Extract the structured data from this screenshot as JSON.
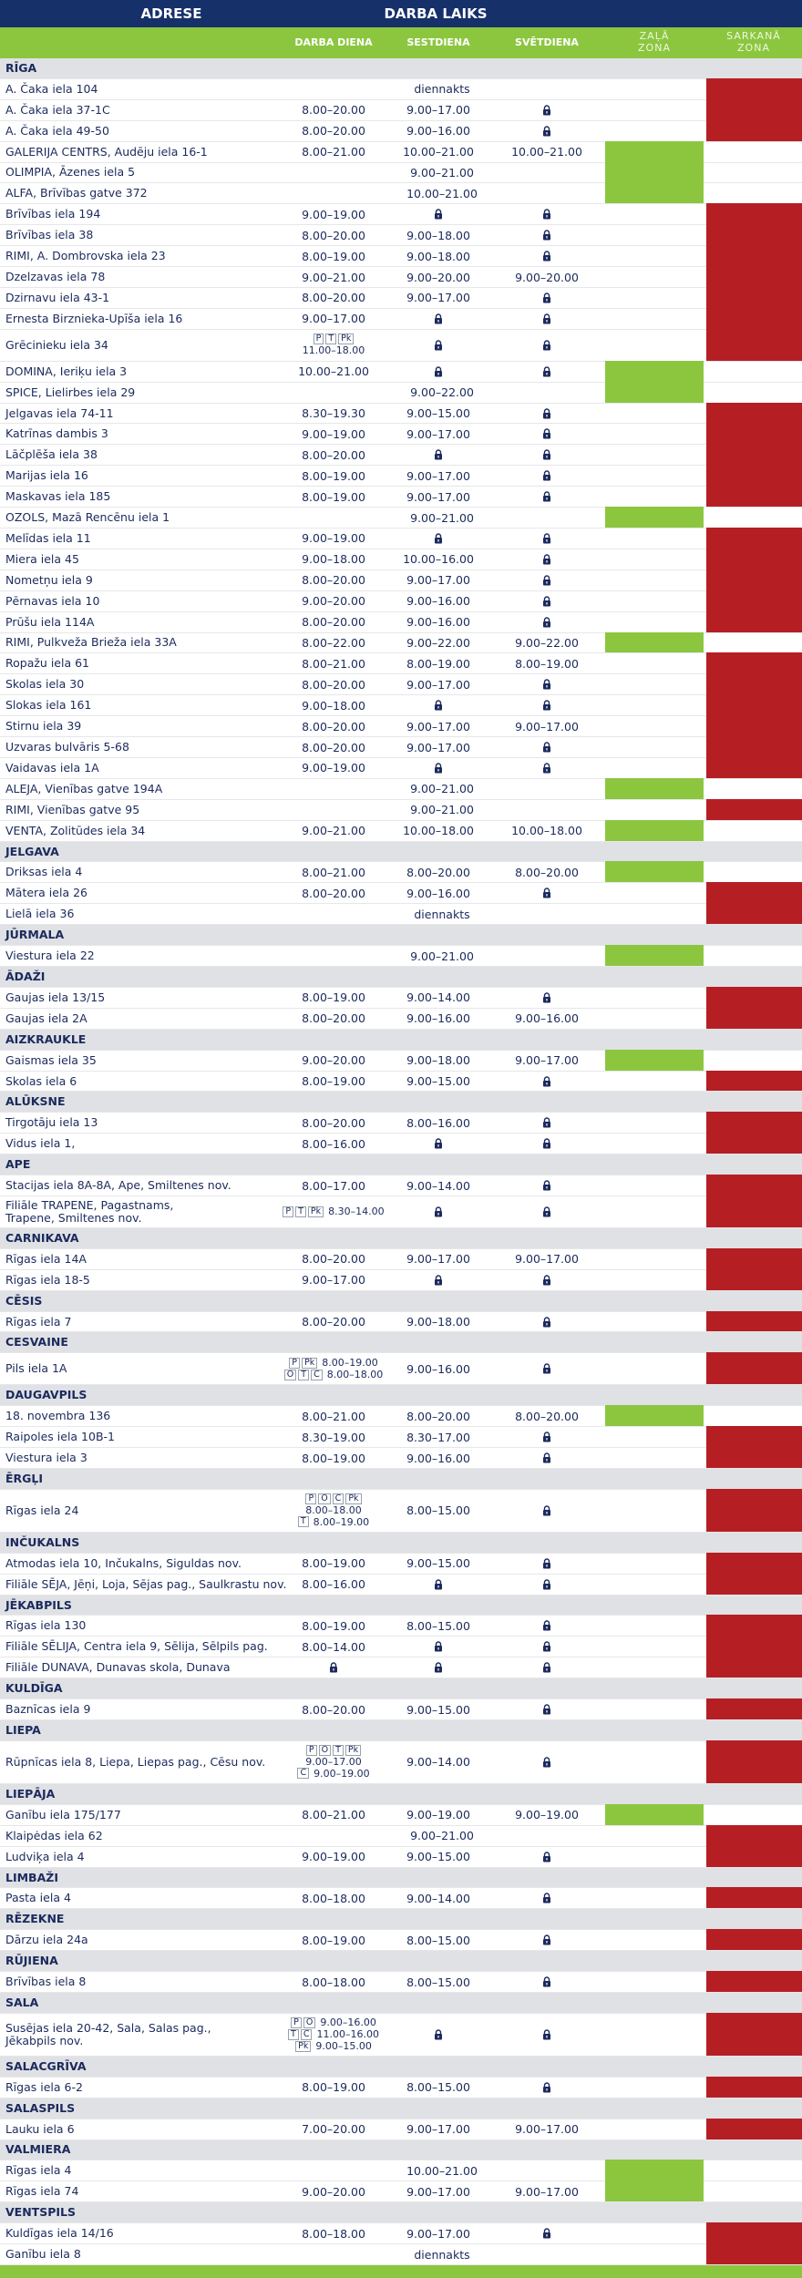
{
  "header": {
    "address": "ADRESE",
    "hours": "DARBA LAIKS",
    "weekday": "DARBA DIENA",
    "saturday": "SESTDIENA",
    "sunday": "SVĒTDIENA",
    "green_zone": "ZAĻĀ ZONA",
    "red_zone": "SARKANĀ ZONA"
  },
  "zone_colors": {
    "green": "#8cc63f",
    "red": "#b51f24"
  },
  "sections": [
    {
      "city": "RĪGA",
      "rows": [
        {
          "address": "A. Čaka iela 104",
          "all_days": "diennakts",
          "zone": "red"
        },
        {
          "address": "A. Čaka iela 37-1C",
          "hours": [
            "8.00–20.00",
            "9.00–17.00",
            false
          ],
          "zone": "red"
        },
        {
          "address": "A. Čaka iela 49-50",
          "hours": [
            "8.00–20.00",
            "9.00–16.00",
            false
          ],
          "zone": "red"
        },
        {
          "address": "GALERIJA CENTRS, Audēju iela 16-1",
          "hours": [
            "8.00–21.00",
            "10.00–21.00",
            "10.00–21.00"
          ],
          "zone": "green"
        },
        {
          "address": "OLIMPIA, Āzenes iela 5",
          "all_days": "9.00–21.00",
          "zone": "green"
        },
        {
          "address": "ALFA, Brīvības gatve 372",
          "all_days": "10.00–21.00",
          "zone": "green"
        },
        {
          "address": "Brīvības iela 194",
          "hours": [
            "9.00–19.00",
            false,
            false
          ],
          "zone": "red"
        },
        {
          "address": "Brīvības iela 38",
          "hours": [
            "8.00–20.00",
            "9.00–18.00",
            false
          ],
          "zone": "red"
        },
        {
          "address": "RIMI, A. Dombrovska iela 23",
          "hours": [
            "8.00–19.00",
            "9.00–18.00",
            false
          ],
          "zone": "red"
        },
        {
          "address": "Dzelzavas iela 78",
          "hours": [
            "9.00–21.00",
            "9.00–20.00",
            "9.00–20.00"
          ],
          "zone": "red"
        },
        {
          "address": "Dzirnavu iela 43-1",
          "hours": [
            "8.00–20.00",
            "9.00–17.00",
            false
          ],
          "zone": "red"
        },
        {
          "address": "Ernesta Birznieka-Upīša iela 16",
          "hours": [
            "9.00–17.00",
            false,
            false
          ],
          "zone": "red"
        },
        {
          "address": "Grēcinieku iela 34",
          "hours": [
            [
              {
                "days": [
                  "P",
                  "T",
                  "Pk"
                ]
              },
              {
                "hours": "11.00–18.00"
              }
            ],
            false,
            false
          ],
          "zone": "red"
        },
        {
          "address": "DOMINA, Ieriķu iela 3",
          "hours": [
            "10.00–21.00",
            false,
            false
          ],
          "zone": "green"
        },
        {
          "address": "SPICE, Lielirbes iela 29",
          "all_days": "9.00–22.00",
          "zone": "green"
        },
        {
          "address": "Jelgavas iela 74-11",
          "hours": [
            "8.30–19.30",
            "9.00–15.00",
            false
          ],
          "zone": "red"
        },
        {
          "address": "Katrīnas dambis 3",
          "hours": [
            "9.00–19.00",
            "9.00–17.00",
            false
          ],
          "zone": "red"
        },
        {
          "address": "Lāčplēša iela 38",
          "hours": [
            "8.00–20.00",
            false,
            false
          ],
          "zone": "red"
        },
        {
          "address": "Marijas iela 16",
          "hours": [
            "8.00–19.00",
            "9.00–17.00",
            false
          ],
          "zone": "red"
        },
        {
          "address": "Maskavas iela 185",
          "hours": [
            "8.00–19.00",
            "9.00–17.00",
            false
          ],
          "zone": "red"
        },
        {
          "address": "OZOLS, Mazā Rencēnu iela 1",
          "all_days": "9.00–21.00",
          "zone": "green"
        },
        {
          "address": "Melīdas iela 11",
          "hours": [
            "9.00–19.00",
            false,
            false
          ],
          "zone": "red"
        },
        {
          "address": "Miera iela 45",
          "hours": [
            "9.00–18.00",
            "10.00–16.00",
            false
          ],
          "zone": "red"
        },
        {
          "address": "Nometņu iela 9",
          "hours": [
            "8.00–20.00",
            "9.00–17.00",
            false
          ],
          "zone": "red"
        },
        {
          "address": "Pērnavas iela 10",
          "hours": [
            "9.00–20.00",
            "9.00–16.00",
            false
          ],
          "zone": "red"
        },
        {
          "address": "Prūšu iela 114A",
          "hours": [
            "8.00–20.00",
            "9.00–16.00",
            false
          ],
          "zone": "red"
        },
        {
          "address": "RIMI, Pulkveža Brieža iela 33A",
          "hours": [
            "8.00–22.00",
            "9.00–22.00",
            "9.00–22.00"
          ],
          "zone": "green"
        },
        {
          "address": "Ropažu iela 61",
          "hours": [
            "8.00–21.00",
            "8.00–19.00",
            "8.00–19.00"
          ],
          "zone": "red"
        },
        {
          "address": "Skolas iela 30",
          "hours": [
            "8.00–20.00",
            "9.00–17.00",
            false
          ],
          "zone": "red"
        },
        {
          "address": "Slokas iela 161",
          "hours": [
            "9.00–18.00",
            false,
            false
          ],
          "zone": "red"
        },
        {
          "address": "Stirnu iela 39",
          "hours": [
            "8.00–20.00",
            "9.00–17.00",
            "9.00–17.00"
          ],
          "zone": "red"
        },
        {
          "address": "Uzvaras bulvāris 5-68",
          "hours": [
            "8.00–20.00",
            "9.00–17.00",
            false
          ],
          "zone": "red"
        },
        {
          "address": "Vaidavas iela 1A",
          "hours": [
            "9.00–19.00",
            false,
            false
          ],
          "zone": "red"
        },
        {
          "address": "ALEJA, Vienības gatve 194A",
          "all_days": "9.00–21.00",
          "zone": "green"
        },
        {
          "address": "RIMI, Vienības gatve 95",
          "all_days": "9.00–21.00",
          "zone": "red"
        },
        {
          "address": "VENTA, Zolitūdes iela 34",
          "hours": [
            "9.00–21.00",
            "10.00–18.00",
            "10.00–18.00"
          ],
          "zone": "green"
        }
      ]
    },
    {
      "city": "JELGAVA",
      "rows": [
        {
          "address": "Driksas iela 4",
          "hours": [
            "8.00–21.00",
            "8.00–20.00",
            "8.00–20.00"
          ],
          "zone": "green"
        },
        {
          "address": "Mātera iela 26",
          "hours": [
            "8.00–20.00",
            "9.00–16.00",
            false
          ],
          "zone": "red"
        },
        {
          "address": "Lielā iela 36",
          "all_days": "diennakts",
          "zone": "red"
        }
      ]
    },
    {
      "city": "JŪRMALA",
      "rows": [
        {
          "address": "Viestura iela 22",
          "all_days": "9.00–21.00",
          "zone": "green"
        }
      ]
    },
    {
      "city": "ĀDAŽI",
      "rows": [
        {
          "address": "Gaujas iela 13/15",
          "hours": [
            "8.00–19.00",
            "9.00–14.00",
            false
          ],
          "zone": "red"
        },
        {
          "address": "Gaujas iela 2A",
          "hours": [
            "8.00–20.00",
            "9.00–16.00",
            "9.00–16.00"
          ],
          "zone": "red"
        }
      ]
    },
    {
      "city": "AIZKRAUKLE",
      "rows": [
        {
          "address": "Gaismas iela 35",
          "hours": [
            "9.00–20.00",
            "9.00–18.00",
            "9.00–17.00"
          ],
          "zone": "green"
        },
        {
          "address": "Skolas iela 6",
          "hours": [
            "8.00–19.00",
            "9.00–15.00",
            false
          ],
          "zone": "red"
        }
      ]
    },
    {
      "city": "ALŪKSNE",
      "rows": [
        {
          "address": "Tirgotāju iela 13",
          "hours": [
            "8.00–20.00",
            "8.00–16.00",
            false
          ],
          "zone": "red"
        },
        {
          "address": "Vidus iela 1,",
          "hours": [
            "8.00–16.00",
            false,
            false
          ],
          "zone": "red"
        }
      ]
    },
    {
      "city": "APE",
      "rows": [
        {
          "address": "Stacijas iela 8A-8A, Ape, Smiltenes nov.",
          "hours": [
            "8.00–17.00",
            "9.00–14.00",
            false
          ],
          "zone": "red"
        },
        {
          "address": "Filiāle TRAPENE, Pagastnams,\nTrapene, Smiltenes nov.",
          "hours": [
            [
              {
                "days": [
                  "P",
                  "T",
                  "Pk"
                ],
                "hours": "8.30–14.00"
              }
            ],
            false,
            false
          ],
          "zone": "red"
        }
      ]
    },
    {
      "city": "CARNIKAVA",
      "rows": [
        {
          "address": "Rīgas iela 14A",
          "hours": [
            "8.00–20.00",
            "9.00–17.00",
            "9.00–17.00"
          ],
          "zone": "red"
        },
        {
          "address": "Rīgas iela 18-5",
          "hours": [
            "9.00–17.00",
            false,
            false
          ],
          "zone": "red"
        }
      ]
    },
    {
      "city": "CĒSIS",
      "rows": [
        {
          "address": "Rīgas iela 7",
          "hours": [
            "8.00–20.00",
            "9.00–18.00",
            false
          ],
          "zone": "red"
        }
      ]
    },
    {
      "city": "CESVAINE",
      "rows": [
        {
          "address": "Pils iela 1A",
          "hours": [
            [
              {
                "days": [
                  "P",
                  "Pk"
                ],
                "hours": "8.00–19.00"
              },
              {
                "days": [
                  "O",
                  "T",
                  "C"
                ],
                "hours": "8.00–18.00"
              }
            ],
            "9.00–16.00",
            false
          ],
          "zone": "red"
        }
      ]
    },
    {
      "city": "DAUGAVPILS",
      "rows": [
        {
          "address": "18. novembra 136",
          "hours": [
            "8.00–21.00",
            "8.00–20.00",
            "8.00–20.00"
          ],
          "zone": "green"
        },
        {
          "address": "Raipoles iela 10B-1",
          "hours": [
            "8.30–19.00",
            "8.30–17.00",
            false
          ],
          "zone": "red"
        },
        {
          "address": "Viestura iela 3",
          "hours": [
            "8.00–19.00",
            "9.00–16.00",
            false
          ],
          "zone": "red"
        }
      ]
    },
    {
      "city": "ĒRGĻI",
      "rows": [
        {
          "address": "Rīgas iela 24",
          "hours": [
            [
              {
                "days": [
                  "P",
                  "O",
                  "C",
                  "Pk"
                ]
              },
              {
                "hours": "8.00–18.00"
              },
              {
                "days": [
                  "T"
                ],
                "hours": "8.00–19.00"
              }
            ],
            "8.00–15.00",
            false
          ],
          "zone": "red"
        }
      ]
    },
    {
      "city": "INČUKALNS",
      "rows": [
        {
          "address": "Atmodas iela 10, Inčukalns, Siguldas nov.",
          "hours": [
            "8.00–19.00",
            "9.00–15.00",
            false
          ],
          "zone": "red"
        },
        {
          "address": "Filiāle SĒJA, Jēņi, Loja, Sējas pag., Saulkrastu nov.",
          "hours": [
            "8.00–16.00",
            false,
            false
          ],
          "zone": "red"
        }
      ]
    },
    {
      "city": "JĒKABPILS",
      "rows": [
        {
          "address": "Rīgas iela 130",
          "hours": [
            "8.00–19.00",
            "8.00–15.00",
            false
          ],
          "zone": "red"
        },
        {
          "address": "Filiāle SĒLIJA, Centra iela 9, Sēlija, Sēlpils pag.",
          "hours": [
            "8.00–14.00",
            false,
            false
          ],
          "zone": "red"
        },
        {
          "address": "Filiāle DUNAVA, Dunavas skola, Dunava",
          "hours": [
            false,
            false,
            false
          ],
          "zone": "red"
        }
      ]
    },
    {
      "city": "KULDĪGA",
      "rows": [
        {
          "address": "Baznīcas iela 9",
          "hours": [
            "8.00–20.00",
            "9.00–15.00",
            false
          ],
          "zone": "red"
        }
      ]
    },
    {
      "city": "LIEPA",
      "rows": [
        {
          "address": "Rūpnīcas iela 8, Liepa, Liepas pag., Cēsu nov.",
          "hours": [
            [
              {
                "days": [
                  "P",
                  "O",
                  "T",
                  "Pk"
                ]
              },
              {
                "hours": "9.00–17.00"
              },
              {
                "days": [
                  "C"
                ],
                "hours": "9.00–19.00"
              }
            ],
            "9.00–14.00",
            false
          ],
          "zone": "red"
        }
      ]
    },
    {
      "city": "LIEPĀJA",
      "rows": [
        {
          "address": "Ganību iela 175/177",
          "hours": [
            "8.00–21.00",
            "9.00–19.00",
            "9.00–19.00"
          ],
          "zone": "green"
        },
        {
          "address": "Klaipėdas iela 62",
          "all_days": "9.00–21.00",
          "zone": "red"
        },
        {
          "address": "Ludviķa iela 4",
          "hours": [
            "9.00–19.00",
            "9.00–15.00",
            false
          ],
          "zone": "red"
        }
      ]
    },
    {
      "city": "LIMBAŽI",
      "rows": [
        {
          "address": "Pasta iela 4",
          "hours": [
            "8.00–18.00",
            "9.00–14.00",
            false
          ],
          "zone": "red"
        }
      ]
    },
    {
      "city": "RĒZEKNE",
      "rows": [
        {
          "address": "Dārzu iela 24a",
          "hours": [
            "8.00–19.00",
            "8.00–15.00",
            false
          ],
          "zone": "red"
        }
      ]
    },
    {
      "city": "RŪJIENA",
      "rows": [
        {
          "address": "Brīvības iela 8",
          "hours": [
            "8.00–18.00",
            "8.00–15.00",
            false
          ],
          "zone": "red"
        }
      ]
    },
    {
      "city": "SALA",
      "rows": [
        {
          "address": "Susējas iela 20-42, Sala, Salas pag.,\nJēkabpils nov.",
          "hours": [
            [
              {
                "days": [
                  "P",
                  "O"
                ],
                "hours": "9.00–16.00"
              },
              {
                "days": [
                  "T",
                  "C"
                ],
                "hours": "11.00–16.00"
              },
              {
                "days": [
                  "Pk"
                ],
                "hours": "9.00–15.00"
              }
            ],
            false,
            false
          ],
          "zone": "red"
        }
      ]
    },
    {
      "city": "SALACGRĪVA",
      "rows": [
        {
          "address": "Rīgas iela 6-2",
          "hours": [
            "8.00–19.00",
            "8.00–15.00",
            false
          ],
          "zone": "red"
        }
      ]
    },
    {
      "city": "SALASPILS",
      "rows": [
        {
          "address": "Lauku iela 6",
          "hours": [
            "7.00–20.00",
            "9.00–17.00",
            "9.00–17.00"
          ],
          "zone": "red"
        }
      ]
    },
    {
      "city": "VALMIERA",
      "rows": [
        {
          "address": "Rīgas iela 4",
          "all_days": "10.00–21.00",
          "zone": "green"
        },
        {
          "address": "Rīgas iela 74",
          "hours": [
            "9.00–20.00",
            "9.00–17.00",
            "9.00–17.00"
          ],
          "zone": "green"
        }
      ]
    },
    {
      "city": "VENTSPILS",
      "rows": [
        {
          "address": "Kuldīgas iela 14/16",
          "hours": [
            "8.00–18.00",
            "9.00–17.00",
            false
          ],
          "zone": "red"
        },
        {
          "address": "Ganību iela 8",
          "all_days": "diennakts",
          "zone": "red"
        }
      ]
    }
  ]
}
